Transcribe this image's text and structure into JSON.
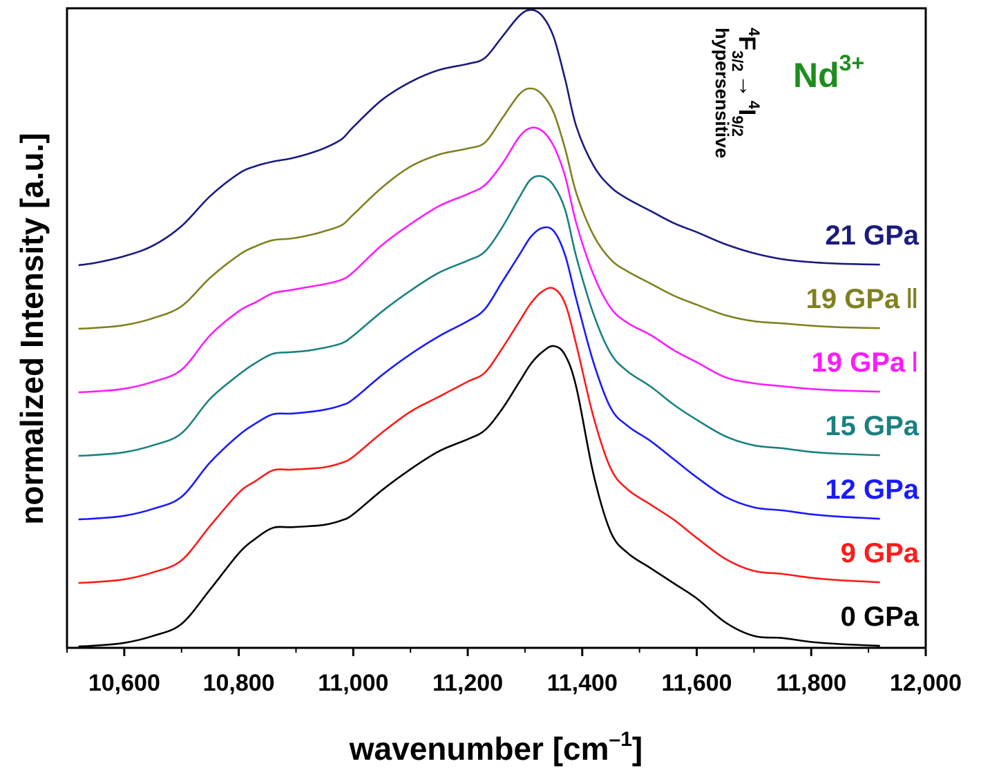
{
  "chart_data": {
    "type": "line",
    "xlabel": "wavenumber [cm",
    "xlabel_unit_sup": "–1",
    "xlabel_close": "]",
    "ylabel": "normalized Intensity [a.u.]",
    "xlim": [
      10500,
      12000
    ],
    "xticks": [
      10600,
      10800,
      11000,
      11200,
      11400,
      11600,
      11800,
      12000
    ],
    "xtick_labels": [
      "10,600",
      "10,800",
      "11,000",
      "11,200",
      "11,400",
      "11,600",
      "11,800",
      "12,000"
    ],
    "y_offset_step": 1,
    "annotations": {
      "ion": "Nd",
      "ion_charge": "3+",
      "transition": {
        "initial_mult": "4",
        "initial_term": "F",
        "initial_j": "3/2",
        "arrow": "→",
        "final_mult": "4",
        "final_term": "I",
        "final_j": "9/2",
        "note": "hypersensitive"
      },
      "ion_color": "#1e8c1e"
    },
    "x": [
      10520,
      10550,
      10600,
      10650,
      10700,
      10750,
      10800,
      10830,
      10860,
      10890,
      10920,
      10950,
      10980,
      11000,
      11050,
      11100,
      11150,
      11200,
      11230,
      11260,
      11290,
      11310,
      11330,
      11350,
      11370,
      11390,
      11420,
      11450,
      11480,
      11520,
      11560,
      11600,
      11650,
      11700,
      11750,
      11800,
      11850,
      11920
    ],
    "series": [
      {
        "name": "0 GPa",
        "label": "0 GPa",
        "label_suffix": "",
        "color": "#000000",
        "offset": 0,
        "values": [
          0.0,
          0.003,
          0.012,
          0.035,
          0.075,
          0.19,
          0.31,
          0.36,
          0.395,
          0.397,
          0.4,
          0.405,
          0.42,
          0.44,
          0.52,
          0.59,
          0.65,
          0.69,
          0.72,
          0.79,
          0.88,
          0.94,
          0.98,
          1.0,
          0.97,
          0.86,
          0.57,
          0.38,
          0.31,
          0.26,
          0.21,
          0.16,
          0.08,
          0.035,
          0.028,
          0.015,
          0.008,
          0.002
        ]
      },
      {
        "name": "9 GPa",
        "label": "9 GPa",
        "label_suffix": "",
        "color": "#ff1a1a",
        "offset": 1,
        "values": [
          0.0,
          0.003,
          0.012,
          0.035,
          0.075,
          0.19,
          0.3,
          0.34,
          0.375,
          0.377,
          0.38,
          0.385,
          0.4,
          0.42,
          0.5,
          0.57,
          0.62,
          0.67,
          0.7,
          0.78,
          0.87,
          0.93,
          0.97,
          0.98,
          0.93,
          0.79,
          0.55,
          0.38,
          0.31,
          0.26,
          0.21,
          0.15,
          0.08,
          0.04,
          0.03,
          0.017,
          0.009,
          0.002
        ]
      },
      {
        "name": "12 GPa",
        "label": "12 GPa",
        "label_suffix": "",
        "color": "#1a1aff",
        "offset": 2,
        "values": [
          0.0,
          0.003,
          0.012,
          0.035,
          0.075,
          0.19,
          0.28,
          0.32,
          0.35,
          0.352,
          0.357,
          0.365,
          0.38,
          0.4,
          0.48,
          0.55,
          0.61,
          0.66,
          0.7,
          0.79,
          0.88,
          0.94,
          0.97,
          0.96,
          0.88,
          0.73,
          0.52,
          0.37,
          0.31,
          0.26,
          0.2,
          0.14,
          0.075,
          0.04,
          0.03,
          0.017,
          0.009,
          0.002
        ]
      },
      {
        "name": "15 GPa",
        "label": "15 GPa",
        "label_suffix": "",
        "color": "#1a8080",
        "offset": 3,
        "values": [
          0.0,
          0.003,
          0.012,
          0.035,
          0.075,
          0.19,
          0.27,
          0.31,
          0.34,
          0.345,
          0.35,
          0.36,
          0.375,
          0.4,
          0.48,
          0.55,
          0.61,
          0.65,
          0.68,
          0.76,
          0.86,
          0.92,
          0.93,
          0.9,
          0.82,
          0.66,
          0.47,
          0.34,
          0.28,
          0.23,
          0.17,
          0.12,
          0.065,
          0.035,
          0.025,
          0.013,
          0.007,
          0.002
        ]
      },
      {
        "name": "19 GPa I",
        "label": "19 GPa",
        "label_suffix": "Ⅰ",
        "color": "#ff1aff",
        "offset": 4,
        "values": [
          0.0,
          0.003,
          0.012,
          0.035,
          0.075,
          0.19,
          0.27,
          0.3,
          0.33,
          0.34,
          0.35,
          0.36,
          0.375,
          0.4,
          0.49,
          0.56,
          0.62,
          0.66,
          0.69,
          0.76,
          0.85,
          0.88,
          0.87,
          0.82,
          0.72,
          0.56,
          0.39,
          0.28,
          0.23,
          0.19,
          0.14,
          0.1,
          0.05,
          0.03,
          0.02,
          0.011,
          0.006,
          0.002
        ]
      },
      {
        "name": "19 GPa II",
        "label": "19 GPa",
        "label_suffix": "Ⅱ",
        "color": "#808020",
        "offset": 5,
        "values": [
          0.0,
          0.003,
          0.012,
          0.035,
          0.075,
          0.17,
          0.245,
          0.275,
          0.295,
          0.3,
          0.31,
          0.325,
          0.345,
          0.38,
          0.47,
          0.54,
          0.58,
          0.6,
          0.62,
          0.7,
          0.78,
          0.8,
          0.78,
          0.72,
          0.6,
          0.45,
          0.31,
          0.23,
          0.19,
          0.15,
          0.11,
          0.08,
          0.045,
          0.025,
          0.018,
          0.01,
          0.005,
          0.002
        ]
      },
      {
        "name": "21 GPa",
        "label": "21 GPa",
        "label_suffix": "",
        "color": "#1a1a80",
        "offset": 6,
        "values": [
          0.0,
          0.008,
          0.03,
          0.065,
          0.13,
          0.23,
          0.305,
          0.33,
          0.345,
          0.355,
          0.37,
          0.39,
          0.42,
          0.46,
          0.55,
          0.61,
          0.65,
          0.67,
          0.69,
          0.76,
          0.83,
          0.85,
          0.83,
          0.76,
          0.62,
          0.46,
          0.33,
          0.26,
          0.22,
          0.18,
          0.14,
          0.11,
          0.07,
          0.04,
          0.02,
          0.01,
          0.005,
          0.002
        ]
      }
    ]
  }
}
